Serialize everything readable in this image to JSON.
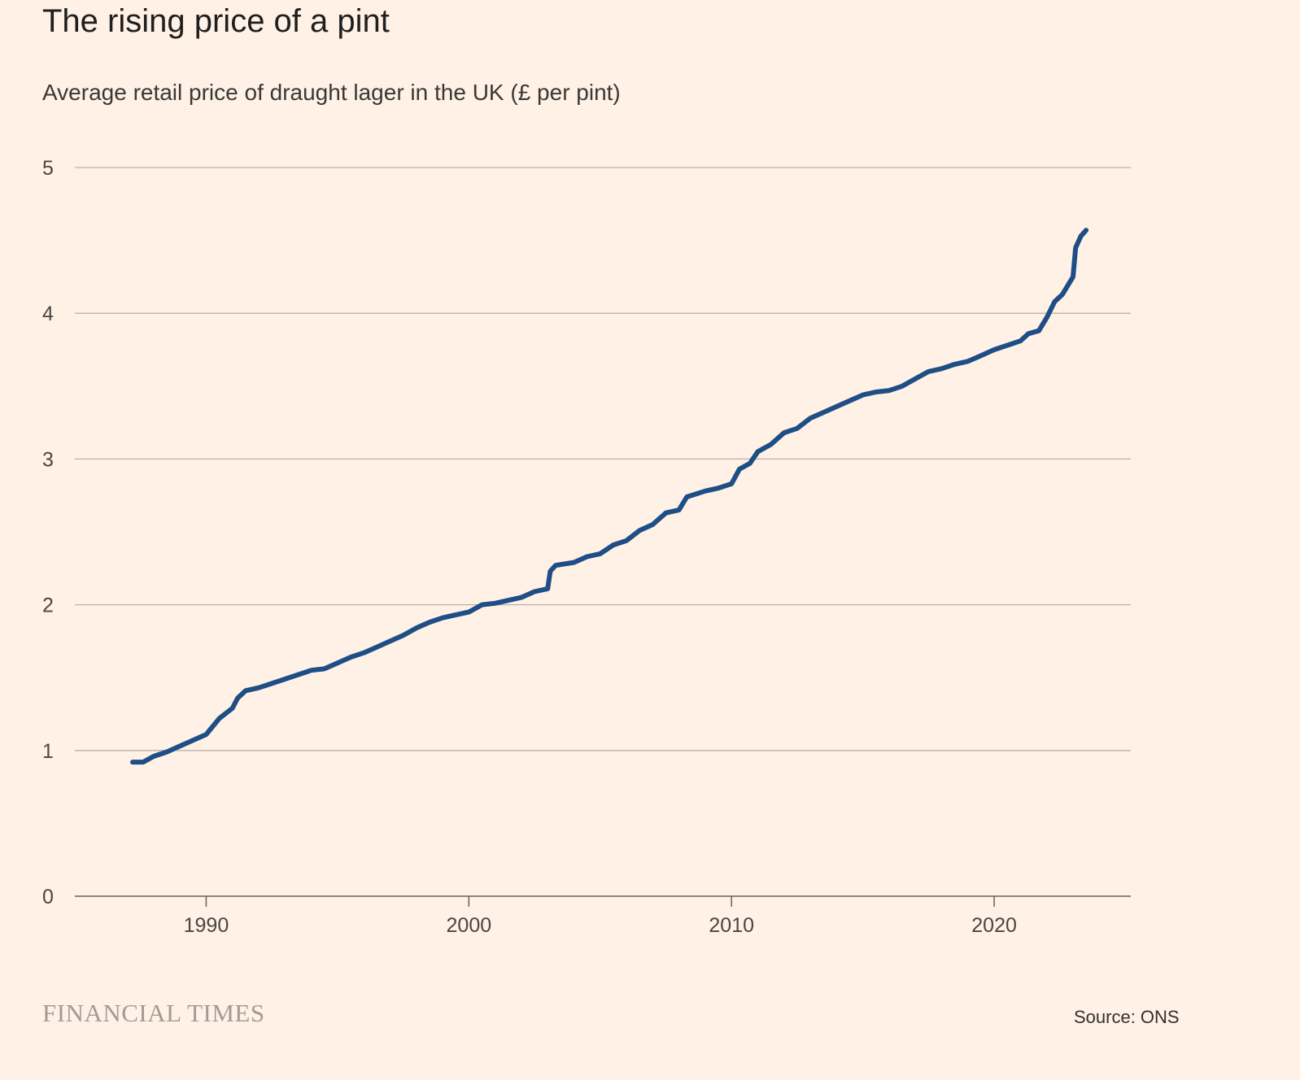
{
  "header": {
    "title": "The rising price of a pint",
    "subtitle": "Average retail price of draught lager in the UK (£ per pint)"
  },
  "footer": {
    "brand": "FINANCIAL TIMES",
    "source": "Source: ONS"
  },
  "colors": {
    "background": "#fff1e5",
    "line": "#1e4e86",
    "grid": "#b9b2ab",
    "axis": "#66605c"
  },
  "chart_data": {
    "type": "line",
    "title": "The rising price of a pint",
    "subtitle": "Average retail price of draught lager in the UK (£ per pint)",
    "xlabel": "",
    "ylabel": "",
    "xlim": [
      1985,
      2025.2
    ],
    "ylim": [
      0,
      5
    ],
    "x_ticks": [
      1990,
      2000,
      2010,
      2020
    ],
    "y_ticks": [
      0,
      1,
      2,
      3,
      4,
      5
    ],
    "grid": true,
    "series": [
      {
        "name": "",
        "x": [
          1987.2,
          1987.6,
          1988.0,
          1988.5,
          1989.0,
          1989.5,
          1990.0,
          1990.5,
          1991.0,
          1991.2,
          1991.5,
          1992.0,
          1992.5,
          1993.0,
          1993.5,
          1994.0,
          1994.5,
          1995.0,
          1995.5,
          1996.0,
          1996.5,
          1997.0,
          1997.5,
          1998.0,
          1998.5,
          1999.0,
          1999.5,
          2000.0,
          2000.5,
          2001.0,
          2001.5,
          2002.0,
          2002.5,
          2003.0,
          2003.1,
          2003.3,
          2004.0,
          2004.5,
          2005.0,
          2005.5,
          2006.0,
          2006.5,
          2007.0,
          2007.5,
          2008.0,
          2008.3,
          2009.0,
          2009.5,
          2010.0,
          2010.3,
          2010.7,
          2011.0,
          2011.5,
          2012.0,
          2012.5,
          2013.0,
          2013.5,
          2014.0,
          2014.5,
          2015.0,
          2015.5,
          2016.0,
          2016.5,
          2017.0,
          2017.5,
          2018.0,
          2018.5,
          2019.0,
          2019.5,
          2020.0,
          2020.5,
          2021.0,
          2021.3,
          2021.7,
          2022.0,
          2022.3,
          2022.6,
          2022.9,
          2023.0,
          2023.1,
          2023.3,
          2023.5
        ],
        "values": [
          0.92,
          0.92,
          0.96,
          0.99,
          1.03,
          1.07,
          1.11,
          1.22,
          1.29,
          1.36,
          1.41,
          1.43,
          1.46,
          1.49,
          1.52,
          1.55,
          1.56,
          1.6,
          1.64,
          1.67,
          1.71,
          1.75,
          1.79,
          1.84,
          1.88,
          1.91,
          1.93,
          1.95,
          2.0,
          2.01,
          2.03,
          2.05,
          2.09,
          2.11,
          2.23,
          2.27,
          2.29,
          2.33,
          2.35,
          2.41,
          2.44,
          2.51,
          2.55,
          2.63,
          2.65,
          2.74,
          2.78,
          2.8,
          2.83,
          2.93,
          2.97,
          3.05,
          3.1,
          3.18,
          3.21,
          3.28,
          3.32,
          3.36,
          3.4,
          3.44,
          3.46,
          3.47,
          3.5,
          3.55,
          3.6,
          3.62,
          3.65,
          3.67,
          3.71,
          3.75,
          3.78,
          3.81,
          3.86,
          3.88,
          3.97,
          4.08,
          4.13,
          4.22,
          4.25,
          4.45,
          4.53,
          4.57
        ]
      }
    ]
  }
}
